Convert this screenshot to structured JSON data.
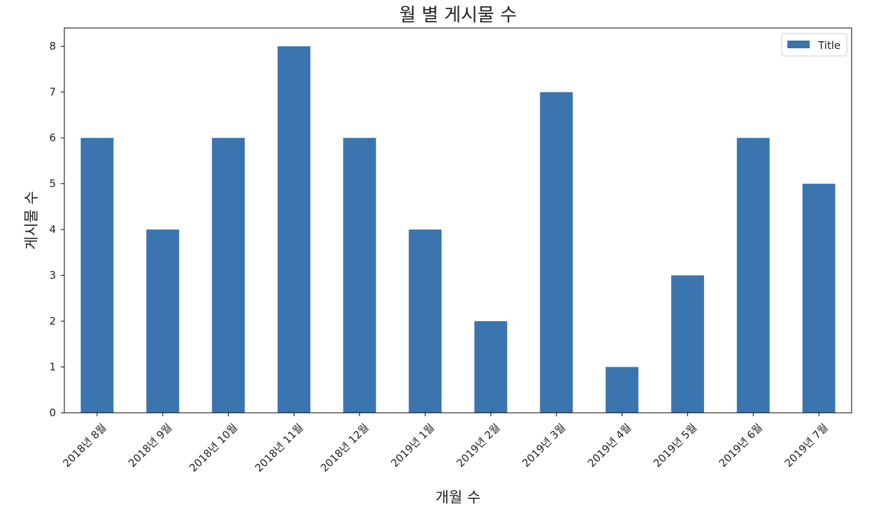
{
  "chart_data": {
    "type": "bar",
    "title": "월 별 게시물 수",
    "xlabel": "개월 수",
    "ylabel": "게시물 수",
    "categories": [
      "2018년 8월",
      "2018년 9월",
      "2018년 10월",
      "2018년 11월",
      "2018년 12월",
      "2019년 1월",
      "2019년 2월",
      "2019년 3월",
      "2019년 4월",
      "2019년 5월",
      "2019년 6월",
      "2019년 7월"
    ],
    "series": [
      {
        "name": "Title",
        "values": [
          6,
          4,
          6,
          8,
          6,
          4,
          2,
          7,
          1,
          3,
          6,
          5
        ],
        "color": "#3a75af"
      }
    ],
    "ylim": [
      0,
      8.4
    ],
    "yticks": [
      0,
      1,
      2,
      3,
      4,
      5,
      6,
      7,
      8
    ],
    "grid": false,
    "legend_position": "top-right",
    "xtick_rotation": "45deg"
  }
}
